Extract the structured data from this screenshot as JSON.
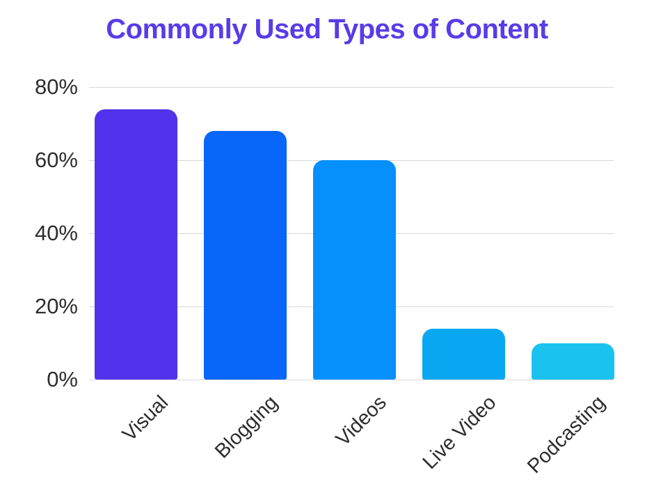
{
  "chart_data": {
    "type": "bar",
    "title": "Commonly Used Types of Content",
    "categories": [
      "Visual",
      "Blogging",
      "Videos",
      "Live Video",
      "Podcasting"
    ],
    "values": [
      74,
      68,
      60,
      14,
      10
    ],
    "unit": "%",
    "bar_colors": [
      "#5232EC",
      "#0866F8",
      "#0590FC",
      "#09A7F2",
      "#1AC3EF"
    ],
    "xlabel": "",
    "ylabel": "",
    "ylim": [
      0,
      80
    ],
    "yticks": [
      80,
      60,
      40,
      20,
      0
    ],
    "ytick_labels": [
      "80%",
      "60%",
      "40%",
      "20%",
      "0%"
    ],
    "grid": "horizontal",
    "legend": "none",
    "x_tick_rotation_deg": -45,
    "title_color": "#5A3BE8",
    "axis_text_color": "#2D2D2D",
    "gridline_color": "#D8D8D8",
    "background_color": "#FFFFFF"
  }
}
